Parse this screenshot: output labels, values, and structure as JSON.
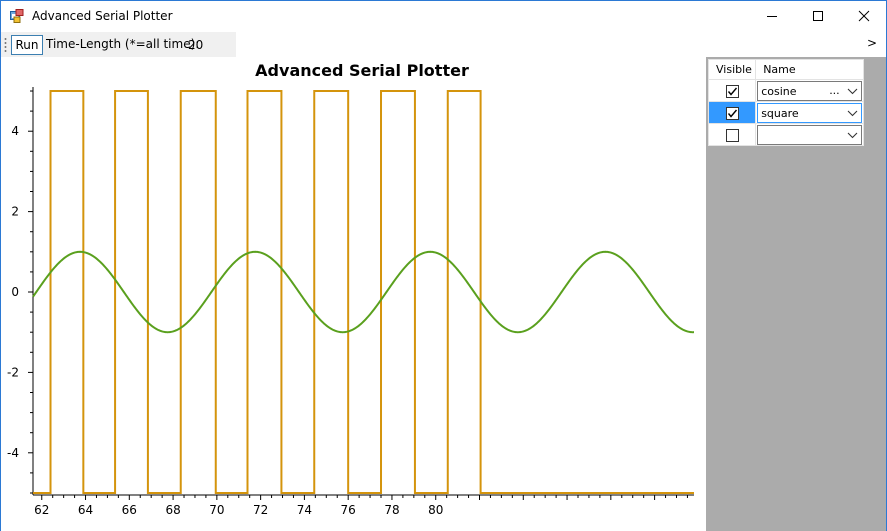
{
  "window": {
    "title": "Advanced Serial Plotter",
    "controls": {
      "minimize": "minimize",
      "maximize": "maximize",
      "close": "close"
    }
  },
  "toolbar": {
    "run_label": "Run",
    "time_length_label": "Time-Length (*=all time):",
    "time_length_value": "20",
    "overflow_label": ">"
  },
  "chart_data": {
    "type": "line",
    "title": "Advanced Serial Plotter",
    "xlim": [
      61.6,
      91.8
    ],
    "ylim": [
      -5.05,
      5.1
    ],
    "xticks": [
      62,
      64,
      66,
      68,
      70,
      72,
      74,
      76,
      78,
      80
    ],
    "yticks": [
      -4,
      -2,
      0,
      2,
      4
    ],
    "grid": false,
    "series": [
      {
        "name": "cosine",
        "color": "#5aa01e",
        "function": "cos",
        "amplitude": 1,
        "period": 8,
        "phase_peak_x": 63.75,
        "x_start": 61.6,
        "x_end": 91.8
      },
      {
        "name": "square",
        "color": "#d4940c",
        "function": "square",
        "high": 5,
        "low": -5,
        "x_rises": [
          62.4,
          65.35,
          68.35,
          71.4,
          74.45,
          77.5,
          80.55
        ],
        "x_falls": [
          63.9,
          66.85,
          69.95,
          72.95,
          76.0,
          79.05,
          82.05,
          83.5
        ],
        "x_start": 61.6,
        "x_end": 91.8
      }
    ]
  },
  "series_grid": {
    "headers": {
      "visible": "Visible",
      "name": "Name"
    },
    "rows": [
      {
        "visible": true,
        "name": "cosine",
        "dots": "...",
        "selected": false
      },
      {
        "visible": true,
        "name": "square",
        "dots": "",
        "selected": true
      },
      {
        "visible": false,
        "name": "",
        "dots": "",
        "selected": false
      }
    ]
  }
}
